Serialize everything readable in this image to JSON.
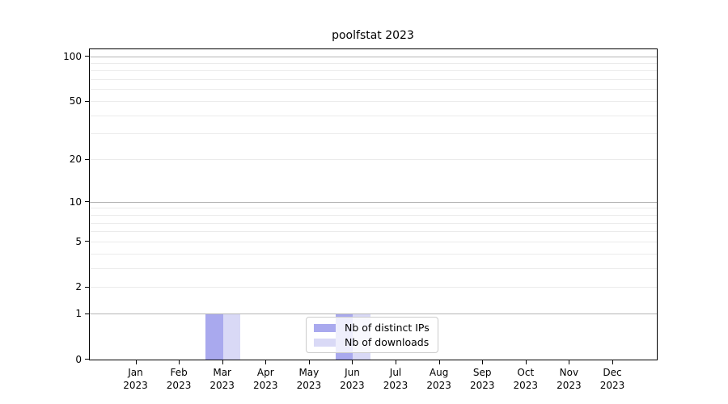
{
  "chart_data": {
    "type": "bar",
    "title": "poolfstat 2023",
    "categories": [
      "Jan 2023",
      "Feb 2023",
      "Mar 2023",
      "Apr 2023",
      "May 2023",
      "Jun 2023",
      "Jul 2023",
      "Aug 2023",
      "Sep 2023",
      "Oct 2023",
      "Nov 2023",
      "Dec 2023"
    ],
    "series": [
      {
        "name": "Nb of distinct IPs",
        "color": "#a9a9ee",
        "values": [
          0,
          0,
          1,
          0,
          0,
          1,
          0,
          0,
          0,
          0,
          0,
          0
        ]
      },
      {
        "name": "Nb of downloads",
        "color": "#d9d9f6",
        "values": [
          0,
          0,
          1,
          0,
          0,
          1,
          0,
          0,
          0,
          0,
          0,
          0
        ]
      }
    ],
    "xlabel": "",
    "ylabel": "",
    "yscale": "log1p",
    "ylim": [
      0,
      100
    ],
    "y_ticks": [
      0,
      1,
      2,
      5,
      10,
      20,
      50,
      100
    ],
    "grid": {
      "on": true,
      "major_values": [
        1,
        10,
        100
      ],
      "minor_values": [
        2,
        3,
        4,
        5,
        6,
        7,
        8,
        9,
        20,
        30,
        40,
        50,
        60,
        70,
        80,
        90
      ]
    },
    "legend": {
      "entries": [
        "Nb of distinct IPs",
        "Nb of downloads"
      ],
      "position": "lower-center-right"
    }
  },
  "colors": {
    "major_grid": "#b5b5b5",
    "minor_grid": "#ebebeb",
    "axis": "#000000",
    "legend_border": "#cccccc"
  }
}
